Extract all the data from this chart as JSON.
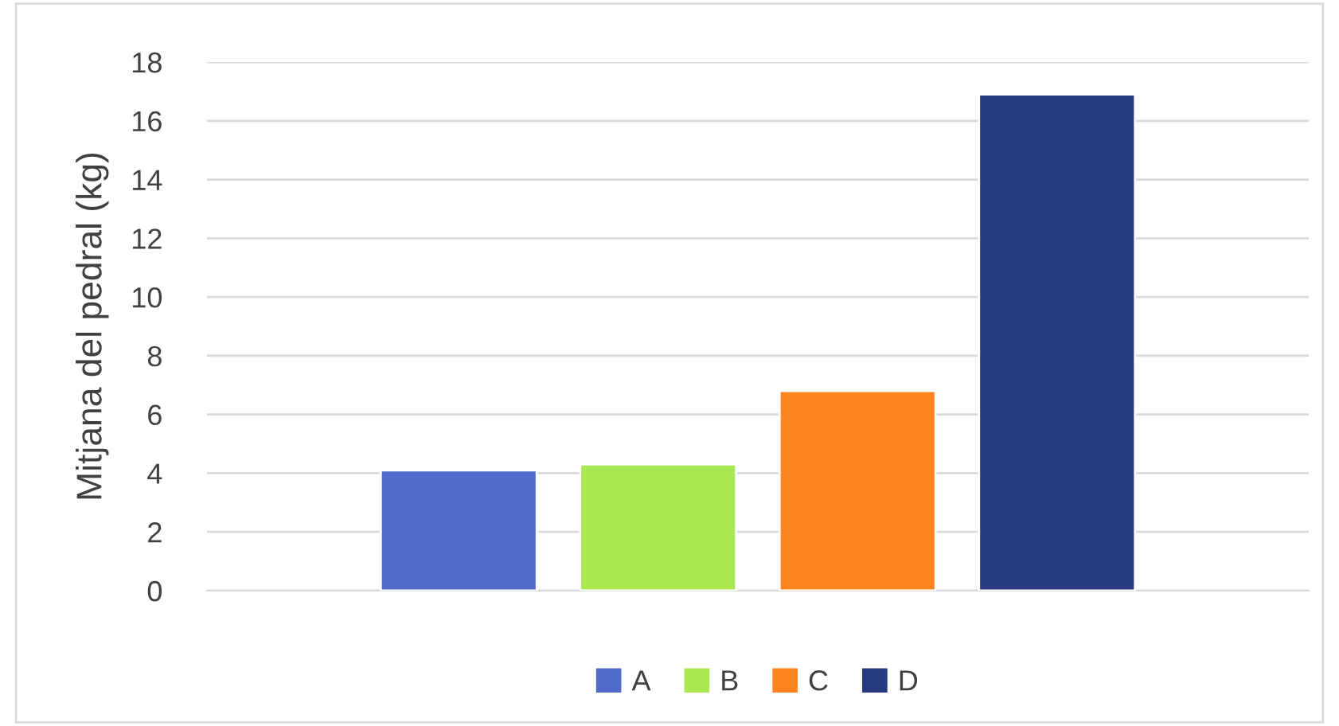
{
  "chart_data": {
    "type": "bar",
    "ylabel": "Mitjana del pedral (kg)",
    "categories": [
      null
    ],
    "series": [
      {
        "name": "A",
        "color": "#4f6bcc",
        "values": [
          4.1
        ]
      },
      {
        "name": "B",
        "color": "#a9e851",
        "values": [
          4.3
        ]
      },
      {
        "name": "C",
        "color": "#fd8421",
        "values": [
          6.8
        ]
      },
      {
        "name": "D",
        "color": "#273a80",
        "values": [
          16.9
        ]
      }
    ],
    "ylim": [
      0,
      18
    ],
    "yticks": [
      0,
      2,
      4,
      6,
      8,
      10,
      12,
      14,
      16,
      18
    ],
    "grid": "y",
    "legend": "bottom"
  }
}
